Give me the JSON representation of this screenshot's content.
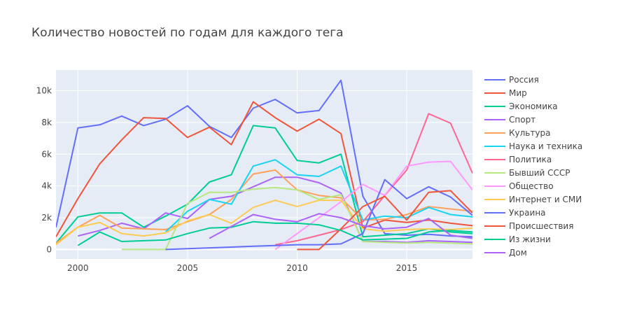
{
  "chart_data": {
    "type": "line",
    "title": "Количество новостей по годам для каждого тега",
    "xlabel": "",
    "ylabel": "",
    "xlim": [
      1999,
      2018
    ],
    "ylim": [
      -600,
      11300
    ],
    "x_ticks": [
      2000,
      2005,
      2010,
      2015
    ],
    "y_ticks": [
      {
        "value": 0,
        "label": "0"
      },
      {
        "value": 2000,
        "label": "2k"
      },
      {
        "value": 4000,
        "label": "4k"
      },
      {
        "value": 6000,
        "label": "6k"
      },
      {
        "value": 8000,
        "label": "8k"
      },
      {
        "value": 10000,
        "label": "10k"
      }
    ],
    "grid": true,
    "legend_position": "right",
    "series": [
      {
        "name": "Россия",
        "color": "#636efa",
        "x": [
          1999,
          2000,
          2001,
          2002,
          2003,
          2004,
          2005,
          2006,
          2007,
          2008,
          2009,
          2010,
          2011,
          2012,
          2013,
          2014,
          2015,
          2016,
          2017,
          2018
        ],
        "y": [
          1400,
          7650,
          7850,
          8400,
          7800,
          8200,
          9050,
          7750,
          7050,
          8900,
          9450,
          8600,
          8750,
          10650,
          3350,
          1000,
          900,
          950,
          850,
          800
        ]
      },
      {
        "name": "Мир",
        "color": "#ef553b",
        "x": [
          1999,
          2000,
          2001,
          2002,
          2003,
          2004,
          2005,
          2006,
          2007,
          2008,
          2009,
          2010,
          2011,
          2012,
          2013,
          2014,
          2015,
          2016,
          2017,
          2018
        ],
        "y": [
          800,
          3200,
          5400,
          6900,
          8300,
          8250,
          7050,
          7700,
          6600,
          9300,
          8300,
          7450,
          8200,
          7300,
          1350,
          1850,
          1700,
          1850,
          1650,
          1500
        ]
      },
      {
        "name": "Экономика",
        "color": "#00cc96",
        "x": [
          1999,
          2000,
          2001,
          2002,
          2003,
          2004,
          2005,
          2006,
          2007,
          2008,
          2009,
          2010,
          2011,
          2012,
          2013,
          2014,
          2015,
          2016,
          2017,
          2018
        ],
        "y": [
          400,
          2050,
          2300,
          2300,
          1400,
          2100,
          2850,
          4250,
          4700,
          7800,
          7650,
          5600,
          5450,
          6000,
          800,
          900,
          1000,
          1300,
          1100,
          1000
        ]
      },
      {
        "name": "Спорт",
        "color": "#ab63fa",
        "x": [
          2000,
          2001,
          2002,
          2003,
          2004,
          2005,
          2006,
          2007,
          2008,
          2009,
          2010,
          2011,
          2012,
          2013,
          2014,
          2015,
          2016,
          2017,
          2018
        ],
        "y": [
          850,
          1200,
          1650,
          1300,
          2300,
          1950,
          3150,
          3350,
          3950,
          4550,
          4550,
          4200,
          3550,
          500,
          500,
          450,
          550,
          500,
          450
        ]
      },
      {
        "name": "Культура",
        "color": "#ffa15a",
        "x": [
          1999,
          2000,
          2001,
          2002,
          2003,
          2004,
          2005,
          2006,
          2007,
          2008,
          2009,
          2010,
          2011,
          2012,
          2013,
          2014,
          2015,
          2016,
          2017,
          2018
        ],
        "y": [
          400,
          1400,
          2150,
          1350,
          1300,
          1250,
          1750,
          2200,
          3150,
          4750,
          5000,
          3750,
          3400,
          3250,
          1850,
          1900,
          2200,
          2700,
          2550,
          2400
        ]
      },
      {
        "name": "Наука и техника",
        "color": "#19d3f3",
        "x": [
          2004,
          2005,
          2006,
          2007,
          2008,
          2009,
          2010,
          2011,
          2012,
          2013,
          2014,
          2015,
          2016,
          2017,
          2018
        ],
        "y": [
          1100,
          2400,
          3150,
          2850,
          5250,
          5650,
          4700,
          4600,
          5250,
          1850,
          2100,
          2000,
          2650,
          2200,
          2050
        ]
      },
      {
        "name": "Политика",
        "color": "#ff6692",
        "x": [
          2009,
          2010,
          2011,
          2012,
          2013,
          2014,
          2015,
          2016,
          2017,
          2018
        ],
        "y": [
          300,
          550,
          900,
          1250,
          1750,
          3400,
          5000,
          8550,
          7950,
          4800
        ]
      },
      {
        "name": "Бывший СССР",
        "color": "#b6e880",
        "x": [
          2002,
          2003,
          2004,
          2005,
          2006,
          2007,
          2008,
          2009,
          2010,
          2011,
          2012,
          2013,
          2014,
          2015,
          2016,
          2017,
          2018
        ],
        "y": [
          0,
          0,
          0,
          2900,
          3600,
          3600,
          3800,
          3900,
          3750,
          3150,
          3450,
          500,
          450,
          400,
          450,
          400,
          350
        ]
      },
      {
        "name": "Общество",
        "color": "#ff97ff",
        "x": [
          2009,
          2010,
          2011,
          2012,
          2013,
          2014,
          2015,
          2016,
          2017,
          2018
        ],
        "y": [
          0,
          1000,
          2000,
          3000,
          4100,
          3400,
          5250,
          5500,
          5550,
          3750
        ]
      },
      {
        "name": "Интернет и СМИ",
        "color": "#fecb52",
        "x": [
          1999,
          2000,
          2001,
          2002,
          2003,
          2004,
          2005,
          2006,
          2007,
          2008,
          2009,
          2010,
          2011,
          2012,
          2013,
          2014,
          2015,
          2016,
          2017,
          2018
        ],
        "y": [
          300,
          1400,
          1700,
          1000,
          850,
          1050,
          1800,
          2200,
          1650,
          2650,
          3100,
          2700,
          3100,
          3100,
          1300,
          1150,
          1250,
          1300,
          1250,
          1350
        ]
      },
      {
        "name": "Украина",
        "color": "#636efa",
        "x": [
          2004,
          2005,
          2006,
          2007,
          2008,
          2009,
          2010,
          2011,
          2012,
          2013,
          2014,
          2015,
          2016,
          2017,
          2018
        ],
        "y": [
          0,
          50,
          100,
          150,
          200,
          250,
          300,
          300,
          350,
          1000,
          4400,
          3200,
          3950,
          3300,
          2150
        ]
      },
      {
        "name": "Происшествия",
        "color": "#ef553b",
        "x": [
          2010,
          2011,
          2012,
          2013,
          2014,
          2015,
          2016,
          2017,
          2018
        ],
        "y": [
          0,
          0,
          1300,
          2700,
          3350,
          1850,
          3600,
          3700,
          2300
        ]
      },
      {
        "name": "Из жизни",
        "color": "#00cc96",
        "x": [
          2000,
          2001,
          2002,
          2003,
          2004,
          2005,
          2006,
          2007,
          2008,
          2009,
          2010,
          2011,
          2012,
          2013,
          2014,
          2015,
          2016,
          2017,
          2018
        ],
        "y": [
          250,
          1100,
          500,
          550,
          600,
          1000,
          1350,
          1400,
          1750,
          1650,
          1650,
          1550,
          1200,
          600,
          650,
          700,
          1100,
          1200,
          1100
        ]
      },
      {
        "name": "Дом",
        "color": "#ab63fa",
        "x": [
          2006,
          2007,
          2008,
          2009,
          2010,
          2011,
          2012,
          2013,
          2014,
          2015,
          2016,
          2017,
          2018
        ],
        "y": [
          700,
          1450,
          2200,
          1900,
          1750,
          2250,
          2000,
          1500,
          1300,
          1400,
          1950,
          900,
          700
        ]
      }
    ]
  }
}
